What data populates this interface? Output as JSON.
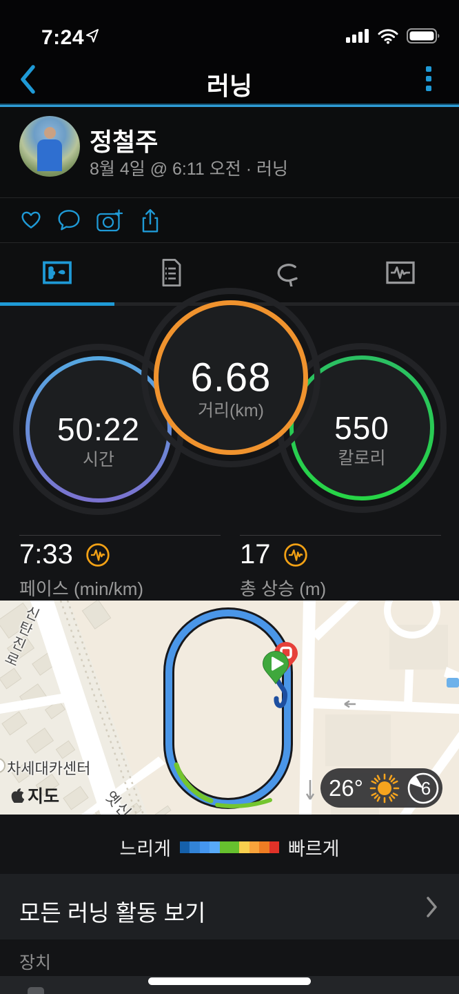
{
  "status_bar": {
    "time": "7:24"
  },
  "nav_bar": {
    "title": "러닝"
  },
  "activity_header": {
    "user_name": "정철주",
    "meta": "8월 4일 @ 6:11 오전 · 러닝"
  },
  "metrics": {
    "time": {
      "value": "50:22",
      "label": "시간"
    },
    "distance": {
      "value": "6.68",
      "label": "거리(km)"
    },
    "calories": {
      "value": "550",
      "label": "칼로리"
    },
    "pace": {
      "value": "7:33",
      "label": "페이스 (min/km)"
    },
    "total_ascent": {
      "value": "17",
      "label": "총 상승 (m)"
    }
  },
  "map": {
    "road_label": "신탄진로",
    "road_label_2": "옛신",
    "poi_label": "차세대카센터",
    "attribution": "지도",
    "weather": {
      "temperature": "26°",
      "air_quality": "6"
    }
  },
  "pace_legend": {
    "slow_label": "느리게",
    "fast_label": "빠르게",
    "colors": [
      "#1560aa",
      "#3283d6",
      "#4596f0",
      "#58aaf8",
      "#66c02e",
      "#66c02e",
      "#f8d04e",
      "#f9a43b",
      "#ef7d23",
      "#e03228"
    ]
  },
  "footer": {
    "view_all_label": "모든 러닝 활동 보기",
    "device_section_label": "장치"
  },
  "colors": {
    "accent": "#1f9ad6",
    "ring-distance": "#f0932e",
    "pulse": "#f2a115",
    "route": "#4a96e8",
    "route-fast": "#74c52f",
    "marker-start": "#3fa83c",
    "marker-end": "#e6403a"
  }
}
